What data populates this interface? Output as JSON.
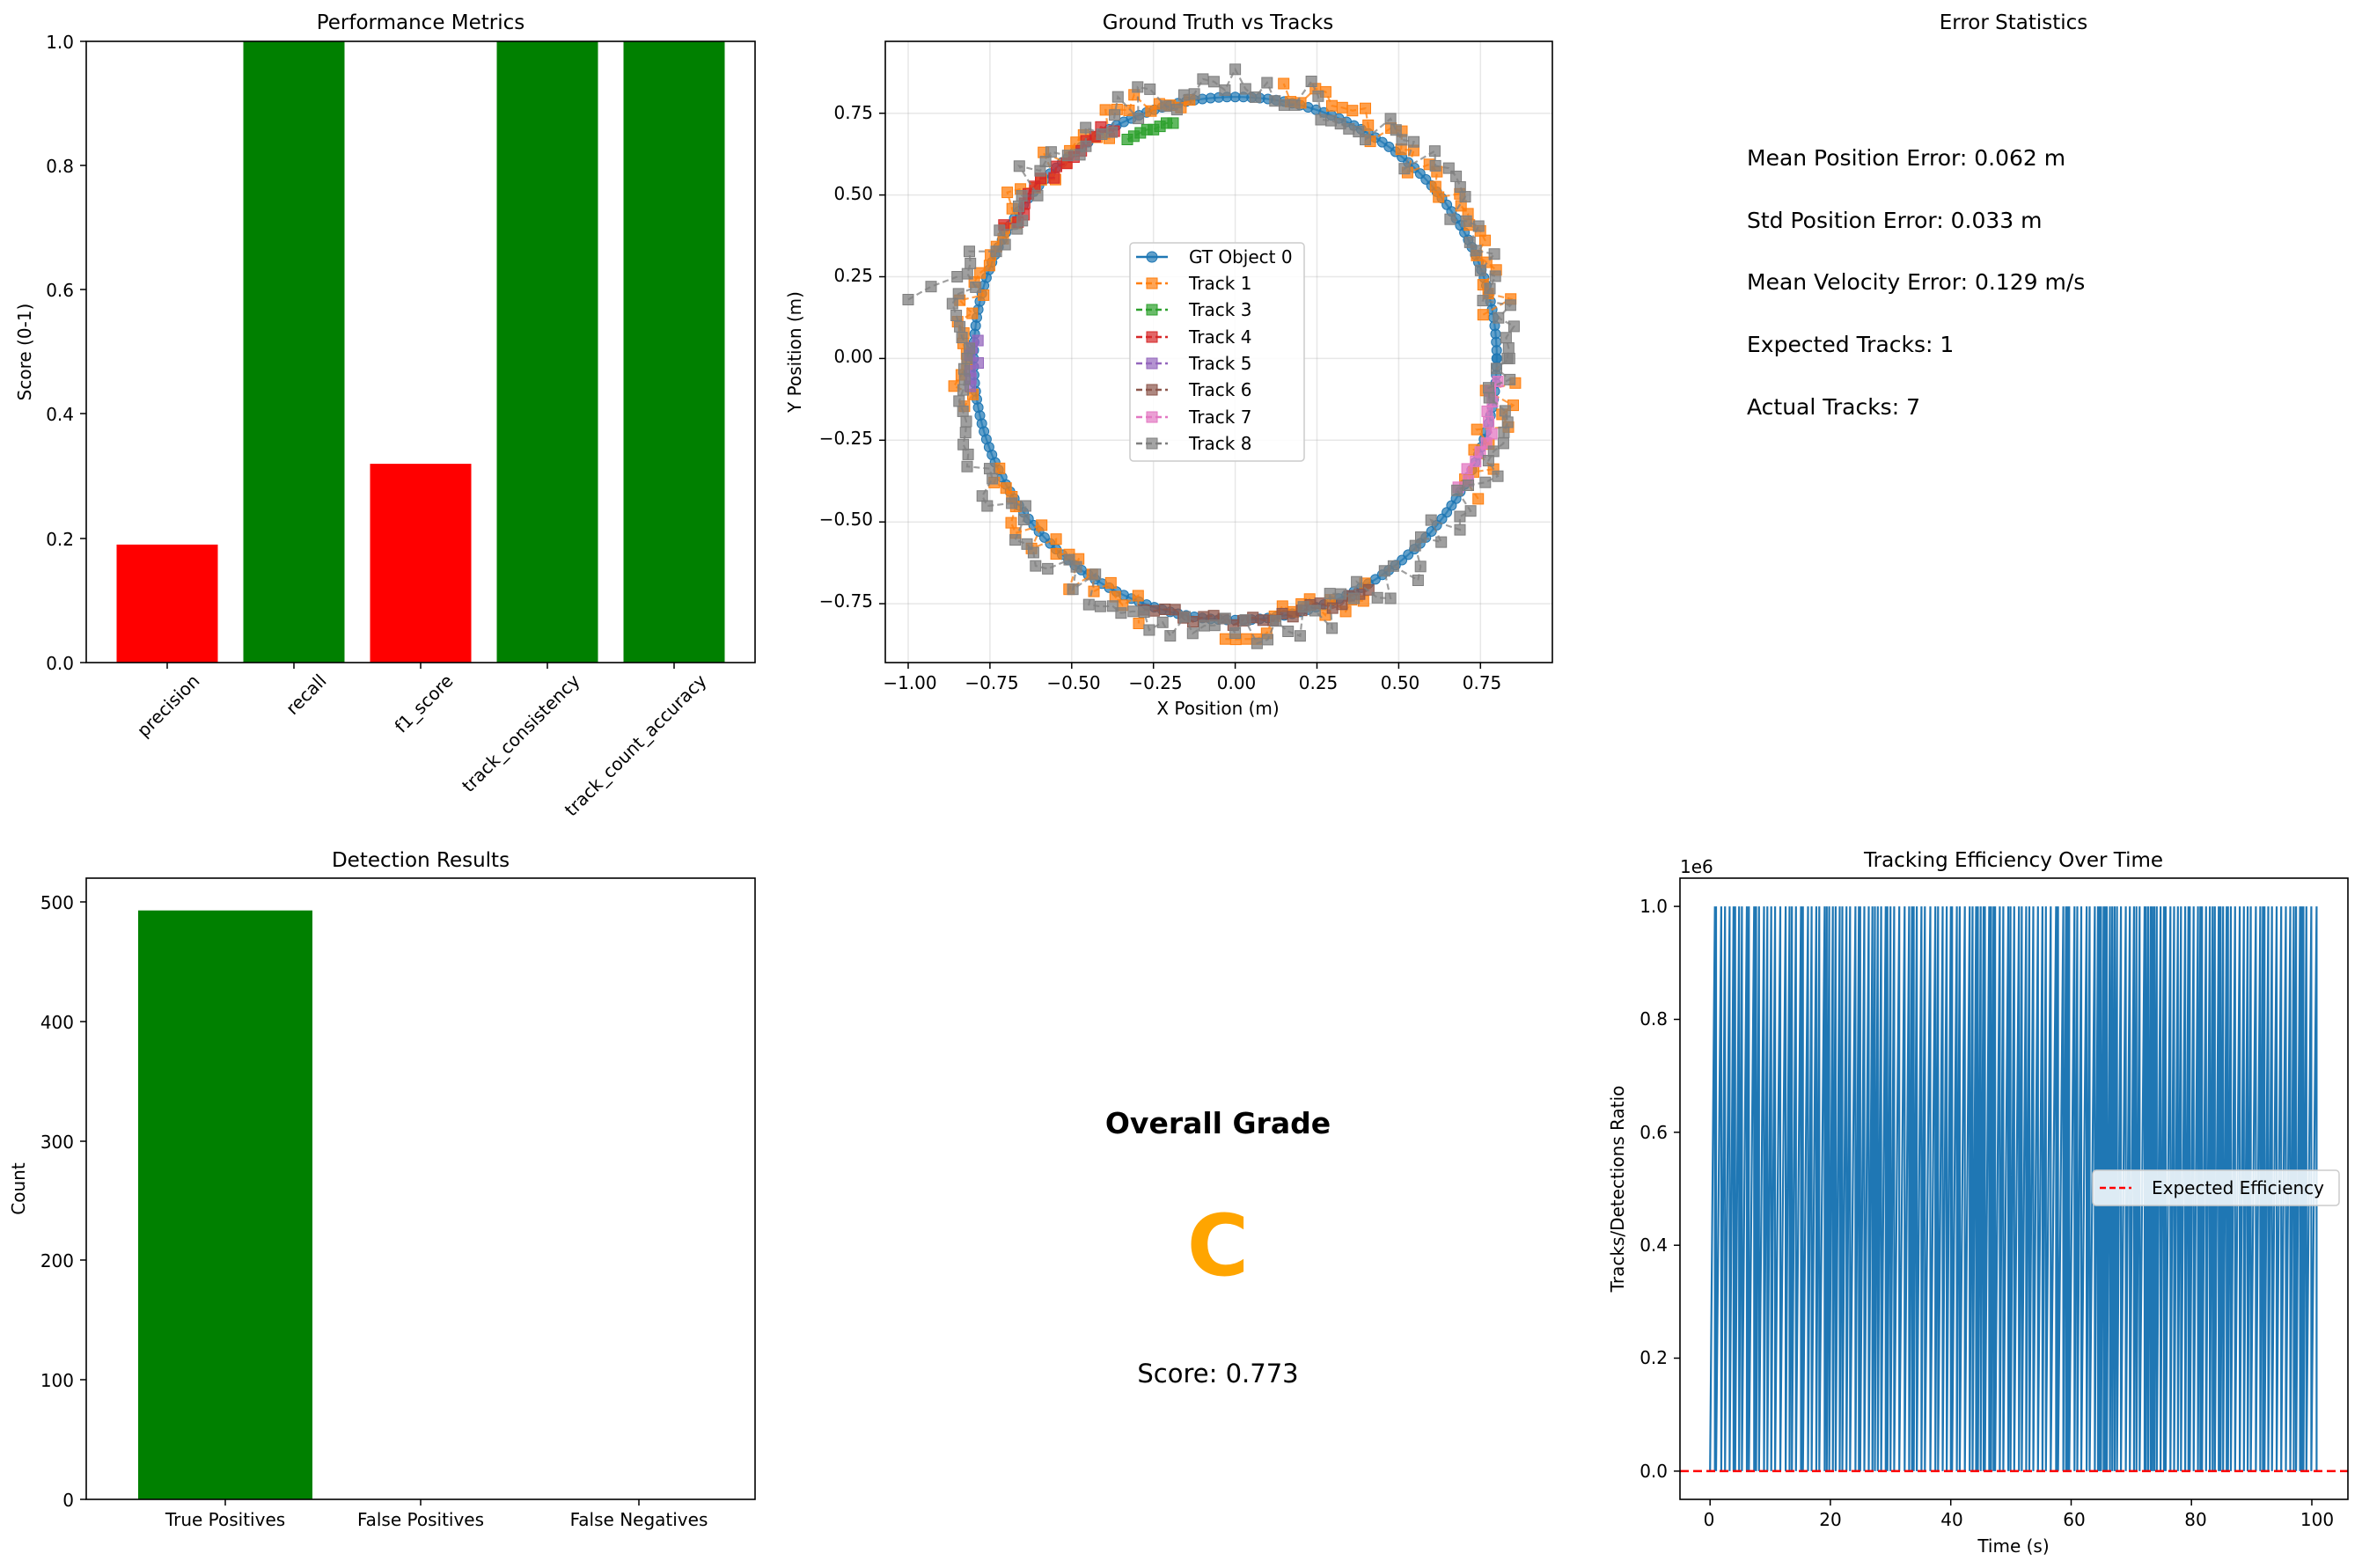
{
  "figure": {
    "panels": {
      "metrics": {
        "title": "Performance Metrics",
        "ylabel": "Score (0-1)",
        "yticks": [
          "0.0",
          "0.2",
          "0.4",
          "0.6",
          "0.8",
          "1.0"
        ],
        "categories": [
          "precision",
          "recall",
          "f1_score",
          "track_consistency",
          "track_count_accuracy"
        ]
      },
      "tracks": {
        "title": "Ground Truth vs Tracks",
        "xlabel": "X Position (m)",
        "ylabel": "Y Position (m)",
        "xticks": [
          "−1.00",
          "−0.75",
          "−0.50",
          "−0.25",
          "0.00",
          "0.25",
          "0.50",
          "0.75"
        ],
        "yticks": [
          "−0.75",
          "−0.50",
          "−0.25",
          "0.00",
          "0.25",
          "0.50",
          "0.75"
        ],
        "legend": [
          "GT Object 0",
          "Track 1",
          "Track 3",
          "Track 4",
          "Track 5",
          "Track 6",
          "Track 7",
          "Track 8"
        ]
      },
      "errors": {
        "title": "Error Statistics",
        "lines": [
          "Mean Position Error: 0.062 m",
          "Std Position Error: 0.033 m",
          "Mean Velocity Error: 0.129 m/s",
          "Expected Tracks: 1",
          "Actual Tracks: 7"
        ]
      },
      "detections": {
        "title": "Detection Results",
        "ylabel": "Count",
        "yticks": [
          "0",
          "100",
          "200",
          "300",
          "400",
          "500"
        ],
        "categories": [
          "True Positives",
          "False Positives",
          "False Negatives"
        ]
      },
      "grade": {
        "heading": "Overall Grade",
        "letter": "C",
        "score_text": "Score: 0.773"
      },
      "efficiency": {
        "title": "Tracking Efficiency Over Time",
        "xlabel": "Time (s)",
        "ylabel": "Tracks/Detections Ratio",
        "offset_label": "1e6",
        "xticks": [
          "0",
          "20",
          "40",
          "60",
          "80",
          "100"
        ],
        "yticks": [
          "0.0",
          "0.2",
          "0.4",
          "0.6",
          "0.8",
          "1.0"
        ],
        "legend": [
          "Expected Efficiency"
        ]
      }
    }
  },
  "chart_data": [
    {
      "type": "bar",
      "title": "Performance Metrics",
      "xlabel": "",
      "ylabel": "Score (0-1)",
      "ylim": [
        0,
        1
      ],
      "grid": false,
      "categories": [
        "precision",
        "recall",
        "f1_score",
        "track_consistency",
        "track_count_accuracy"
      ],
      "values": [
        0.19,
        1.0,
        0.32,
        1.0,
        1.0
      ],
      "colors": [
        "#ff0000",
        "#008000",
        "#ff0000",
        "#008000",
        "#008000"
      ]
    },
    {
      "type": "scatter",
      "title": "Ground Truth vs Tracks",
      "xlabel": "X Position (m)",
      "ylabel": "Y Position (m)",
      "xlim": [
        -1.07,
        0.97
      ],
      "ylim": [
        -0.93,
        0.97
      ],
      "grid": true,
      "legend_position": "center",
      "series": [
        {
          "name": "GT Object 0",
          "color": "#1f77b4",
          "marker": "circle",
          "linestyle": "solid",
          "kind": "circle",
          "cx": 0,
          "cy": 0,
          "r": 0.8,
          "start_deg": 0,
          "end_deg": 360,
          "n": 200
        },
        {
          "name": "Track 1",
          "color": "#ff7f0e",
          "marker": "square",
          "linestyle": "dashed",
          "kind": "noisy_arcs",
          "cx": 0,
          "cy": 0,
          "r": 0.82,
          "arcs": [
            [
              10,
              80
            ],
            [
              100,
              190
            ],
            [
              205,
              250
            ],
            [
              268,
              300
            ],
            [
              330,
              355
            ]
          ],
          "noise": 0.05
        },
        {
          "name": "Track 3",
          "color": "#2ca02c",
          "marker": "square",
          "linestyle": "dashed",
          "kind": "points",
          "x": [
            -0.33,
            -0.31,
            -0.29,
            -0.27,
            -0.25,
            -0.23,
            -0.21,
            -0.19
          ],
          "y": [
            0.67,
            0.68,
            0.69,
            0.7,
            0.7,
            0.71,
            0.72,
            0.72
          ]
        },
        {
          "name": "Track 4",
          "color": "#d62728",
          "marker": "square",
          "linestyle": "dashed",
          "kind": "noisy_arcs",
          "cx": 0,
          "cy": 0,
          "r": 0.8,
          "arcs": [
            [
              118,
              150
            ]
          ],
          "noise": 0.02
        },
        {
          "name": "Track 5",
          "color": "#9467bd",
          "marker": "square",
          "linestyle": "dashed",
          "kind": "noisy_arcs",
          "cx": 0,
          "cy": 0,
          "r": 0.8,
          "arcs": [
            [
              176,
              186
            ]
          ],
          "noise": 0.015
        },
        {
          "name": "Track 6",
          "color": "#8c564b",
          "marker": "square",
          "linestyle": "dashed",
          "kind": "noisy_arcs",
          "cx": 0,
          "cy": 0,
          "r": 0.8,
          "arcs": [
            [
              250,
              300
            ]
          ],
          "noise": 0.02
        },
        {
          "name": "Track 7",
          "color": "#e377c2",
          "marker": "square",
          "linestyle": "dashed",
          "kind": "noisy_arcs",
          "cx": 0,
          "cy": 0,
          "r": 0.8,
          "arcs": [
            [
              330,
              355
            ]
          ],
          "noise": 0.02
        },
        {
          "name": "Track 8",
          "color": "#7f7f7f",
          "marker": "square",
          "linestyle": "dashed",
          "kind": "noisy_arcs",
          "cx": 0,
          "cy": 0,
          "r": 0.83,
          "arcs": [
            [
              0,
              360
            ]
          ],
          "noise": 0.055,
          "outliers": [
            [
              -1.0,
              0.18
            ],
            [
              -0.93,
              0.22
            ],
            [
              -0.85,
              0.25
            ]
          ]
        }
      ]
    },
    {
      "type": "text",
      "title": "Error Statistics",
      "lines": [
        "Mean Position Error: 0.062 m",
        "Std Position Error: 0.033 m",
        "Mean Velocity Error: 0.129 m/s",
        "Expected Tracks: 1",
        "Actual Tracks: 7"
      ],
      "mean_position_error_m": 0.062,
      "std_position_error_m": 0.033,
      "mean_velocity_error_mps": 0.129,
      "expected_tracks": 1,
      "actual_tracks": 7
    },
    {
      "type": "bar",
      "title": "Detection Results",
      "xlabel": "",
      "ylabel": "Count",
      "ylim": [
        0,
        520
      ],
      "grid": false,
      "categories": [
        "True Positives",
        "False Positives",
        "False Negatives"
      ],
      "values": [
        493,
        0,
        0
      ],
      "colors": [
        "#008000",
        "#ff0000",
        "#ffa500"
      ]
    },
    {
      "type": "text",
      "title": "Overall Grade",
      "grade": "C",
      "score": 0.773,
      "grade_color": "#ffa500"
    },
    {
      "type": "line",
      "title": "Tracking Efficiency Over Time",
      "xlabel": "Time (s)",
      "ylabel": "Tracks/Detections Ratio",
      "xlim": [
        -5,
        106
      ],
      "ylim": [
        -0.05,
        1.05
      ],
      "y_scale_factor": "1e6",
      "grid": false,
      "legend_position": "center right",
      "series": [
        {
          "name": "",
          "color": "#1f77b4",
          "t_start": 0,
          "t_end": 101,
          "dt": 0.2,
          "values": [
            0,
            1
          ],
          "pattern": "binary spikes between 0.0 and 1.0 (x1e6)"
        },
        {
          "name": "Expected Efficiency",
          "color": "#ff0000",
          "linestyle": "dashed",
          "y": 0
        }
      ]
    }
  ]
}
